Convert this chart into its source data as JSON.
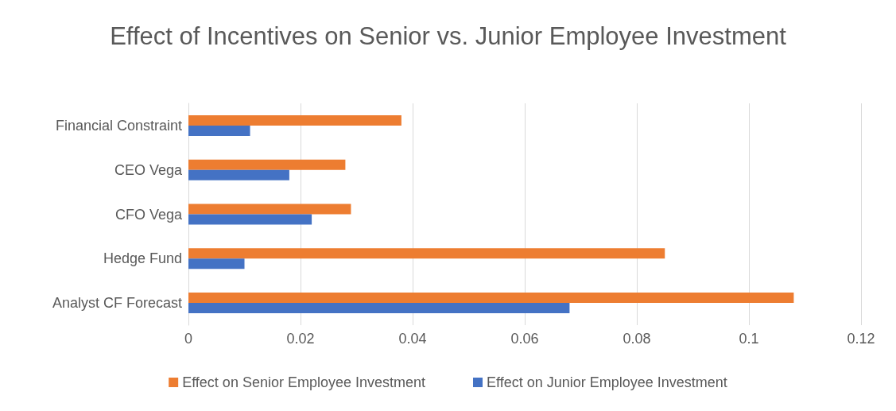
{
  "chart_data": {
    "type": "bar",
    "orientation": "horizontal",
    "title": "Effect of Incentives on Senior vs. Junior Employee Investment",
    "categories": [
      "Financial Constraint",
      "CEO Vega",
      "CFO Vega",
      "Hedge Fund",
      "Analyst CF Forecast"
    ],
    "series": [
      {
        "name": "Effect on Senior Employee Investment",
        "color": "#ed7d31",
        "values": [
          0.038,
          0.028,
          0.029,
          0.085,
          0.108
        ]
      },
      {
        "name": "Effect on Junior Employee Investment",
        "color": "#4472c4",
        "values": [
          0.011,
          0.018,
          0.022,
          0.01,
          0.068
        ]
      }
    ],
    "xlim": [
      0,
      0.12
    ],
    "xticks": [
      0,
      0.02,
      0.04,
      0.06,
      0.08,
      0.1,
      0.12
    ],
    "grid": "x",
    "legend": "bottom"
  }
}
